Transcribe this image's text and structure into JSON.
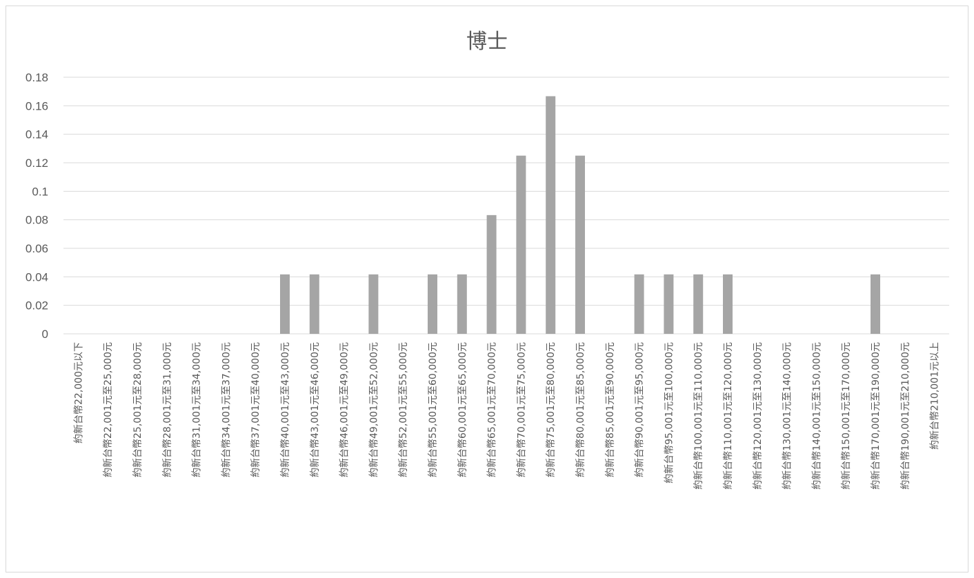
{
  "chart_data": {
    "type": "bar",
    "title": "博士",
    "xlabel": "",
    "ylabel": "",
    "ylim": [
      0,
      0.18
    ],
    "yticks": [
      "0",
      "0.02",
      "0.04",
      "0.06",
      "0.08",
      "0.1",
      "0.12",
      "0.14",
      "0.16",
      "0.18"
    ],
    "grid": true,
    "legend": "none",
    "bar_color": "#a5a5a5",
    "grid_color": "#d9d9d9",
    "text_color": "#595959",
    "categories": [
      "約新台幣22,000元以下",
      "約新台幣22,001元至25,000元",
      "約新台幣25,001元至28,000元",
      "約新台幣28,001元至31,000元",
      "約新台幣31,001元至34,000元",
      "約新台幣34,001元至37,000元",
      "約新台幣37,001元至40,000元",
      "約新台幣40,001元至43,000元",
      "約新台幣43,001元至46,000元",
      "約新台幣46,001元至49,000元",
      "約新台幣49,001元至52,000元",
      "約新台幣52,001元至55,000元",
      "約新台幣55,001元至60,000元",
      "約新台幣60,001元至65,000元",
      "約新台幣65,001元至70,000元",
      "約新台幣70,001元至75,000元",
      "約新台幣75,001元至80,000元",
      "約新台幣80,001元至85,000元",
      "約新台幣85,001元至90,000元",
      "約新台幣90,001元至95,000元",
      "約新台幣95,001元至100,000元",
      "約新台幣100,001元至110,000元",
      "約新台幣110,001元至120,000元",
      "約新台幣120,001元至130,000元",
      "約新台幣130,001元至140,000元",
      "約新台幣140,001元至150,000元",
      "約新台幣150,001元至170,000元",
      "約新台幣170,001元至190,000元",
      "約新台幣190,001元至210,000元",
      "約新台幣210,001元以上"
    ],
    "values": [
      0,
      0,
      0,
      0,
      0,
      0,
      0,
      0.0417,
      0.0417,
      0,
      0.0417,
      0,
      0.0417,
      0.0417,
      0.0833,
      0.125,
      0.1667,
      0.125,
      0,
      0.0417,
      0.0417,
      0.0417,
      0.0417,
      0,
      0,
      0,
      0,
      0.0417,
      0,
      0
    ]
  }
}
